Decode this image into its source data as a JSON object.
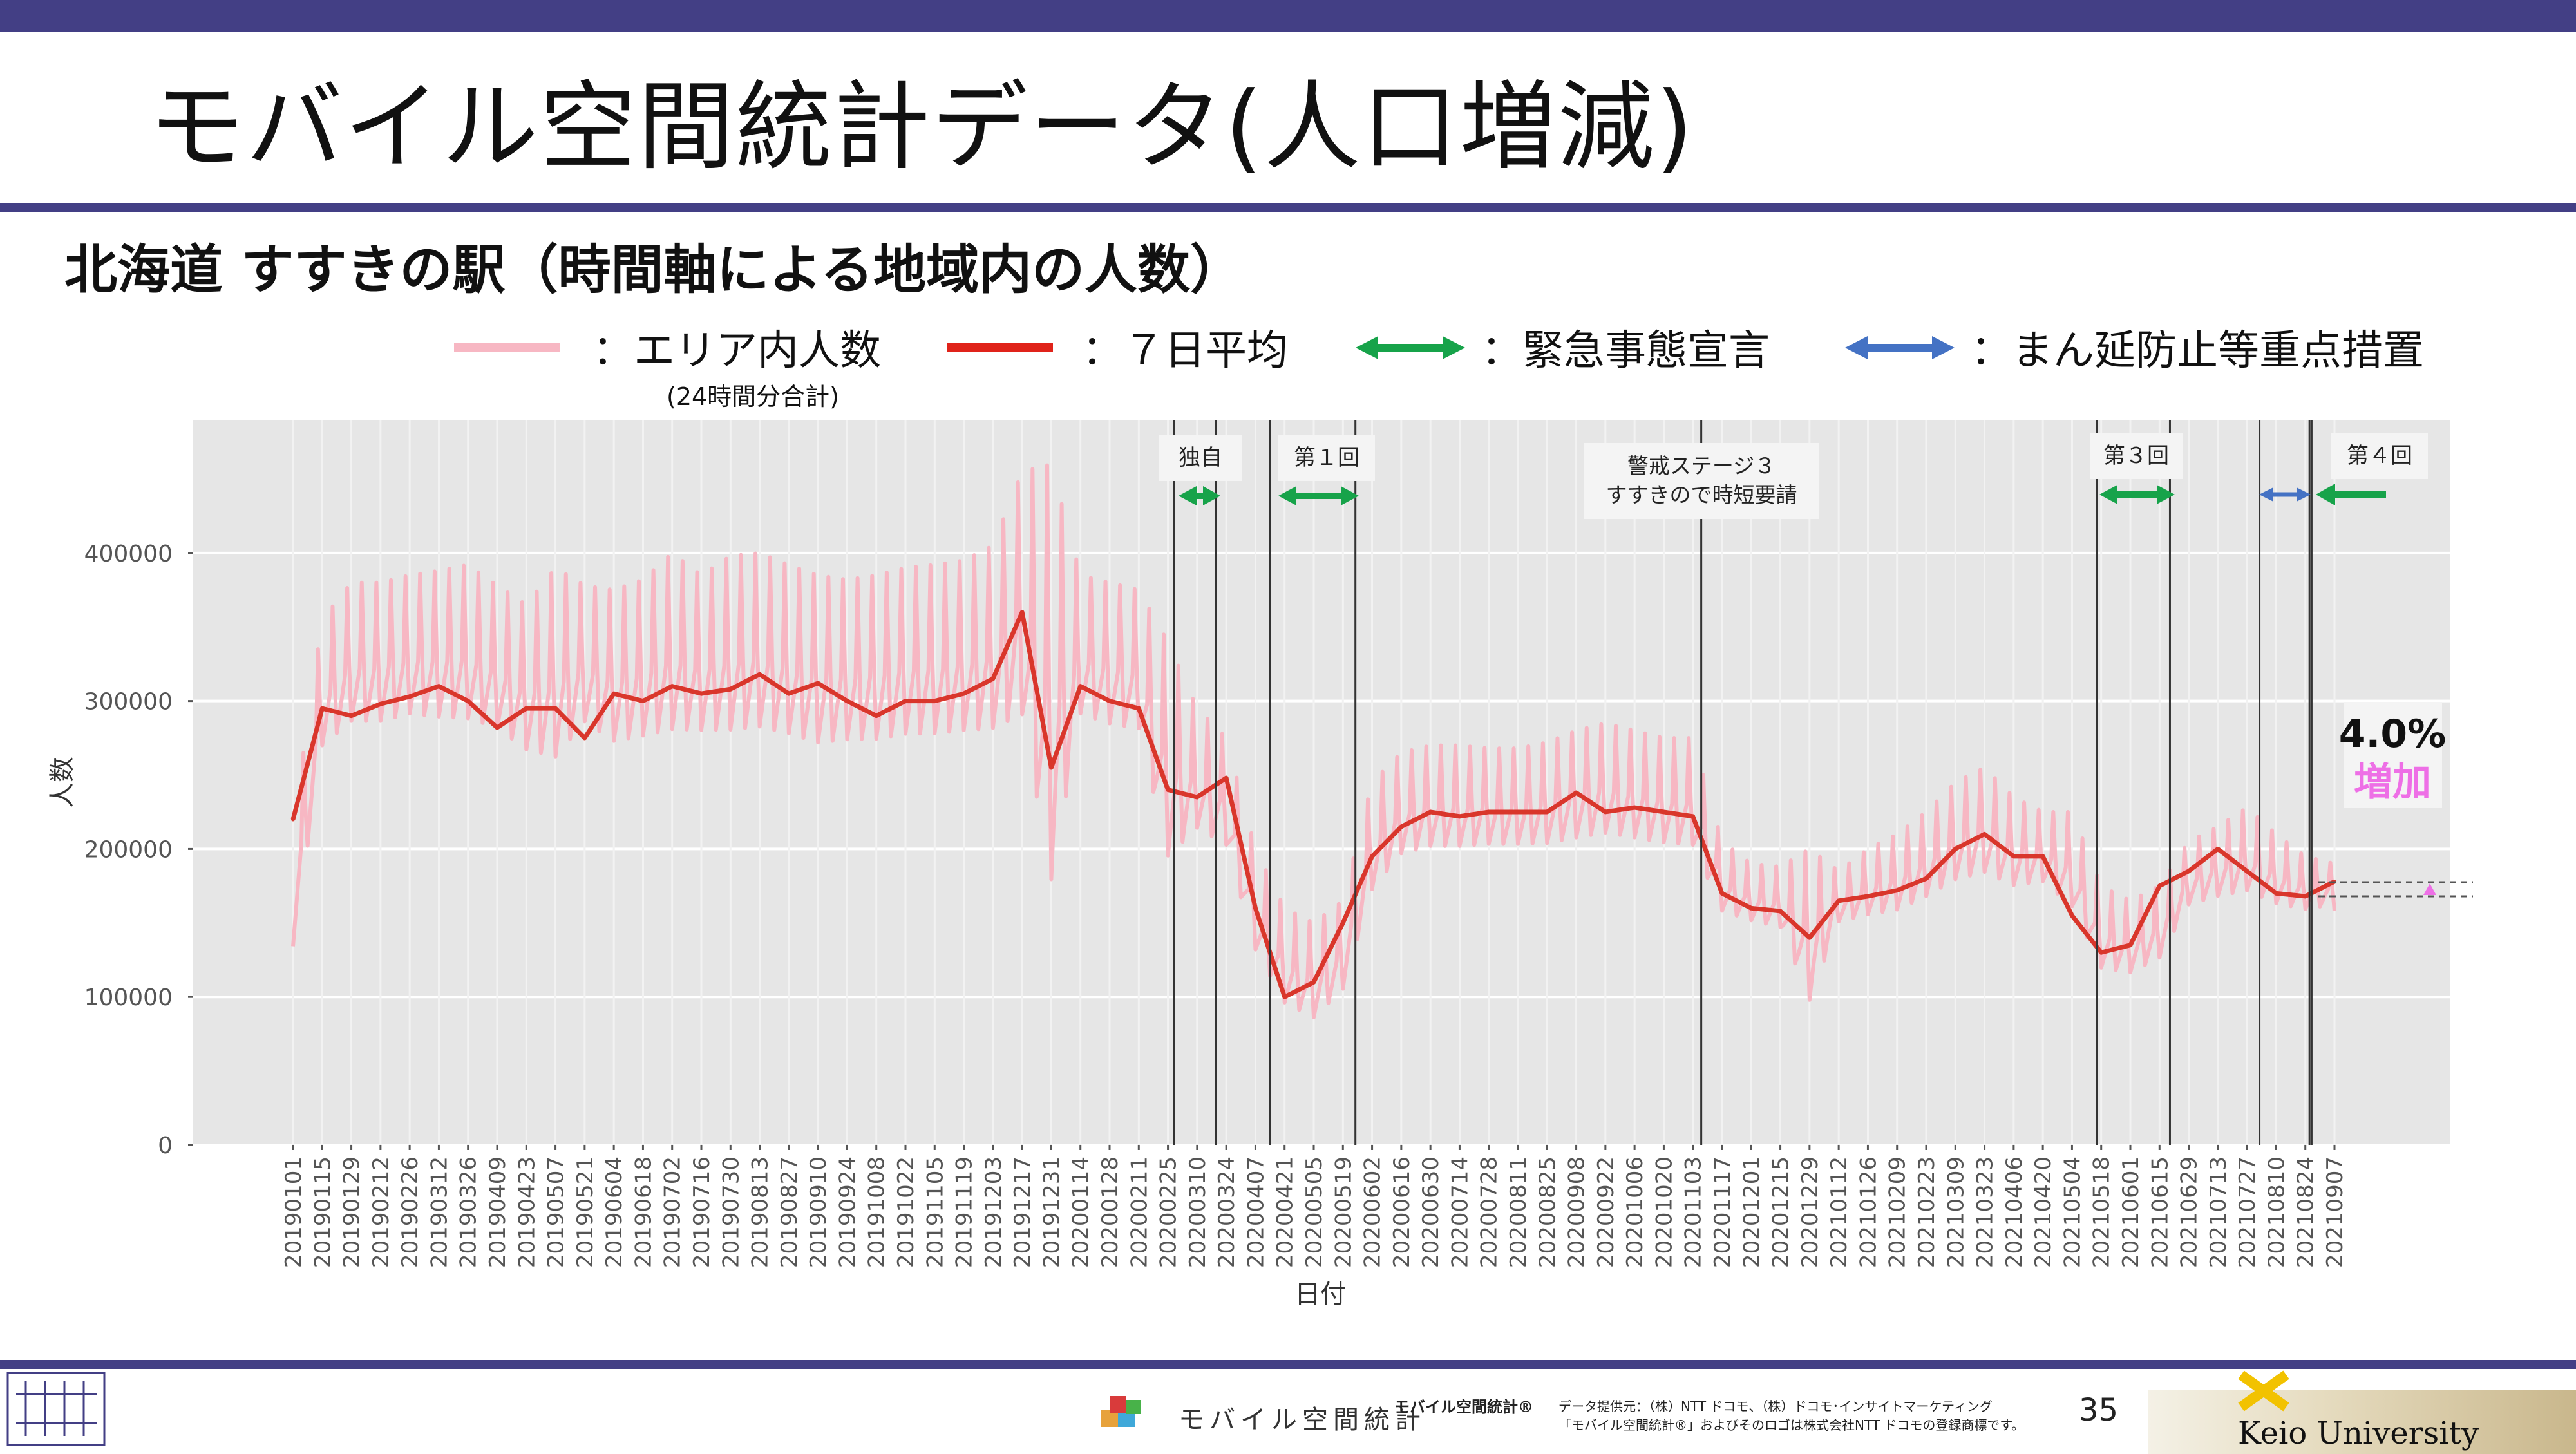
{
  "slide": {
    "title": "モバイル空間統計データ(人口増減)",
    "subtitle": "北海道 すすきの駅（時間軸による地域内の人数）",
    "page_number": "35"
  },
  "legend": {
    "area_label": "：エリア内人数",
    "area_sub": "(24時間分合計)",
    "avg_label": "：７日平均",
    "emergency_label": "：緊急事態宣言",
    "priority_label": "：まん延防止等重点措置"
  },
  "colors": {
    "header_bar": "#433f85",
    "area": "#f7b7c3",
    "avg": "#d9362b",
    "emergency": "#17a34a",
    "priority": "#4472c4",
    "plot_bg": "#e6e6e6",
    "increase": "#ee6fe6"
  },
  "annotations": {
    "dokuji": "独自",
    "first": "第１回",
    "stage3_line1": "警戒ステージ３",
    "stage3_line2": "すすきので時短要請",
    "third": "第３回",
    "fourth": "第４回",
    "pct": "4.0%",
    "pct_word": "増加"
  },
  "chart_data": {
    "type": "line",
    "xlabel": "日付",
    "ylabel": "人数",
    "ylim": [
      0,
      490000
    ],
    "yticks": [
      "0",
      "100000",
      "200000",
      "300000",
      "400000"
    ],
    "ytick_values": [
      0,
      100000,
      200000,
      300000,
      400000
    ],
    "grid": true,
    "x_ticks": [
      "20190101",
      "20190115",
      "20190129",
      "20190212",
      "20190226",
      "20190312",
      "20190326",
      "20190409",
      "20190423",
      "20190507",
      "20190521",
      "20190604",
      "20190618",
      "20190702",
      "20190716",
      "20190730",
      "20190813",
      "20190827",
      "20190910",
      "20190924",
      "20191008",
      "20191022",
      "20191105",
      "20191119",
      "20191203",
      "20191217",
      "20191231",
      "20200114",
      "20200128",
      "20200211",
      "20200225",
      "20200310",
      "20200324",
      "20200407",
      "20200421",
      "20200505",
      "20200519",
      "20200602",
      "20200616",
      "20200630",
      "20200714",
      "20200728",
      "20200811",
      "20200825",
      "20200908",
      "20200922",
      "20201006",
      "20201020",
      "20201103",
      "20201117",
      "20201201",
      "20201215",
      "20201229",
      "20210112",
      "20210126",
      "20210209",
      "20210223",
      "20210309",
      "20210323",
      "20210406",
      "20210420",
      "20210504",
      "20210518",
      "20210601",
      "20210615",
      "20210629",
      "20210713",
      "20210727",
      "20210810",
      "20210824",
      "20210907"
    ],
    "series": [
      {
        "name": "エリア内人数",
        "note": "(24時間分合計)",
        "biweekly_low": [
          120000,
          255000,
          270000,
          270000,
          275000,
          272000,
          270000,
          265000,
          250000,
          240000,
          270000,
          255000,
          258000,
          260000,
          262000,
          260000,
          262000,
          258000,
          252000,
          255000,
          255000,
          258000,
          258000,
          260000,
          260000,
          262000,
          130000,
          275000,
          268000,
          265000,
          170000,
          200000,
          190000,
          120000,
          85000,
          75000,
          95000,
          160000,
          185000,
          190000,
          190000,
          192000,
          192000,
          192000,
          195000,
          198000,
          195000,
          192000,
          190000,
          150000,
          145000,
          140000,
          80000,
          145000,
          148000,
          150000,
          158000,
          168000,
          172000,
          165000,
          170000,
          150000,
          110000,
          108000,
          118000,
          155000,
          160000,
          162000,
          155000,
          153000,
          158000
        ],
        "biweekly_high": [
          215000,
          355000,
          380000,
          380000,
          385000,
          388000,
          392000,
          378000,
          365000,
          390000,
          378000,
          375000,
          382000,
          400000,
          385000,
          398000,
          400000,
          392000,
          385000,
          382000,
          385000,
          390000,
          392000,
          395000,
          405000,
          455000,
          460000,
          385000,
          380000,
          375000,
          340000,
          295000,
          275000,
          200000,
          160000,
          150000,
          165000,
          245000,
          265000,
          270000,
          270000,
          268000,
          268000,
          272000,
          280000,
          285000,
          280000,
          275000,
          275000,
          205000,
          190000,
          188000,
          200000,
          185000,
          200000,
          210000,
          225000,
          245000,
          255000,
          235000,
          225000,
          225000,
          175000,
          165000,
          175000,
          205000,
          215000,
          228000,
          210000,
          195000,
          190000
        ]
      },
      {
        "name": "７日平均",
        "values": [
          220000,
          295000,
          290000,
          298000,
          303000,
          310000,
          300000,
          282000,
          295000,
          295000,
          275000,
          305000,
          300000,
          310000,
          305000,
          308000,
          318000,
          305000,
          312000,
          300000,
          290000,
          300000,
          300000,
          305000,
          315000,
          360000,
          255000,
          310000,
          300000,
          295000,
          240000,
          235000,
          248000,
          160000,
          100000,
          110000,
          150000,
          195000,
          215000,
          225000,
          222000,
          225000,
          225000,
          225000,
          238000,
          225000,
          228000,
          225000,
          222000,
          170000,
          160000,
          158000,
          140000,
          165000,
          168000,
          172000,
          180000,
          200000,
          210000,
          195000,
          195000,
          155000,
          130000,
          135000,
          175000,
          185000,
          200000,
          185000,
          170000,
          168000,
          178000
        ]
      }
    ],
    "policy_periods": [
      {
        "label": "独自",
        "type": "emergency",
        "start": "20200228",
        "end": "20200319"
      },
      {
        "label": "第１回",
        "type": "emergency",
        "start": "20200414",
        "end": "20200525"
      },
      {
        "label": "警戒ステージ３ すすきので時短要請",
        "type": "restriction",
        "start": "20201107",
        "end": ""
      },
      {
        "label": "第３回",
        "type": "emergency",
        "start": "20210516",
        "end": "20210620"
      },
      {
        "label": "",
        "type": "priority",
        "start": "20210802",
        "end": "20210826"
      },
      {
        "label": "第４回",
        "type": "emergency",
        "start": "20210827",
        "end": ""
      }
    ],
    "pct_change": "4.0%",
    "pct_change_label": "増加"
  },
  "footer": {
    "brand": "モバイル空間統計",
    "brand_reg": "モバイル空間統計®",
    "credit1": "データ提供元：（株）NTT ドコモ、（株）ドコモ･インサイトマーケティング",
    "credit2": "「モバイル空間統計®」およびそのロゴは株式会社NTT ドコモの登録商標です。",
    "university": "Keio University"
  }
}
